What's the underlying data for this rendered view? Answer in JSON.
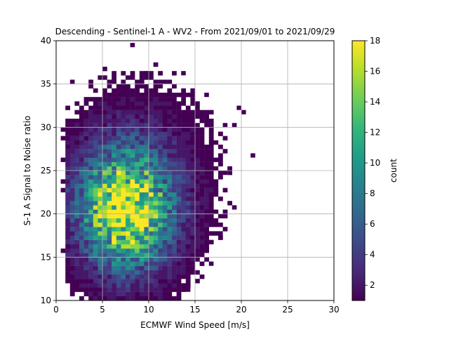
{
  "chart_data": {
    "type": "heatmap",
    "title": "Descending - Sentinel-1 A - WV2 - From 2021/09/01 to 2021/09/29",
    "xlabel": "ECMWF Wind Speed [m/s]",
    "ylabel": "S-1 A Signal to Noise ratio",
    "xlim": [
      0,
      30
    ],
    "ylim": [
      10,
      40
    ],
    "x_ticks": [
      "0",
      "5",
      "10",
      "15",
      "20",
      "25",
      "30"
    ],
    "y_ticks": [
      "10",
      "15",
      "20",
      "25",
      "30",
      "35",
      "40"
    ],
    "grid": true,
    "bin_width_x": 0.5,
    "bin_width_y": 0.5,
    "colormap": "viridis",
    "colorbar": {
      "label": "count",
      "range": [
        1,
        18
      ],
      "ticks": [
        "2",
        "4",
        "6",
        "8",
        "10",
        "12",
        "14",
        "16",
        "18"
      ]
    },
    "distribution": {
      "peak": {
        "x": 7.5,
        "y": 20.5,
        "count": 18
      },
      "wind_extent": [
        0.5,
        21.5
      ],
      "snr_extent": [
        10,
        39.5
      ],
      "note_counts": "bins with counts 1-18"
    },
    "outliers": [
      {
        "x": 8.25,
        "y": 39.5,
        "count": 1
      },
      {
        "x": 21.25,
        "y": 26.75,
        "count": 1
      },
      {
        "x": 19.25,
        "y": 30.25,
        "count": 1
      },
      {
        "x": 18.25,
        "y": 30.25,
        "count": 1
      },
      {
        "x": 19.75,
        "y": 32.25,
        "count": 1
      },
      {
        "x": 20.25,
        "y": 31.75,
        "count": 1
      },
      {
        "x": 19.25,
        "y": 20.75,
        "count": 1
      },
      {
        "x": 17.75,
        "y": 17.75,
        "count": 1
      },
      {
        "x": 14.25,
        "y": 11.25,
        "count": 1
      },
      {
        "x": 16.75,
        "y": 14.25,
        "count": 1
      },
      {
        "x": 18.25,
        "y": 24.75,
        "count": 1
      },
      {
        "x": 16.25,
        "y": 33.75,
        "count": 1
      },
      {
        "x": 13.75,
        "y": 36.25,
        "count": 1
      },
      {
        "x": 9.75,
        "y": 36.25,
        "count": 1
      },
      {
        "x": 1.75,
        "y": 35.25,
        "count": 1
      }
    ]
  },
  "colors": {
    "grid": "#b0b0b0",
    "axis": "#000000",
    "viridis": [
      "#440154",
      "#482878",
      "#3e4989",
      "#31688e",
      "#26828e",
      "#1f9e89",
      "#35b779",
      "#6ece58",
      "#b5de2b",
      "#fde725"
    ]
  }
}
